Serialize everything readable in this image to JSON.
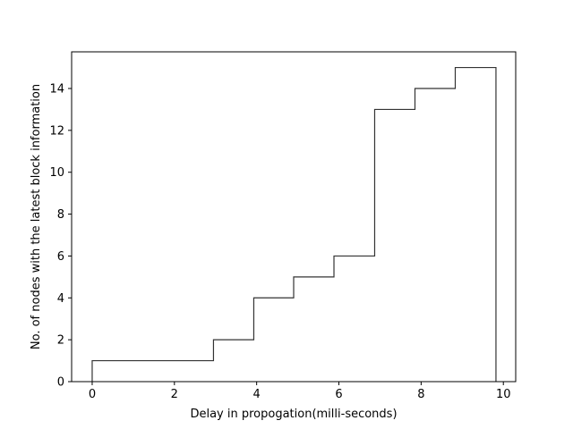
{
  "chart_data": {
    "type": "line",
    "drawstyle": "step-histogram",
    "title": "",
    "xlabel": "Delay in propogation(milli-seconds)",
    "ylabel": "No. of nodes with the latest block information",
    "xlim": [
      -0.5,
      10.3
    ],
    "ylim": [
      0,
      15.75
    ],
    "xticks": [
      0,
      2,
      4,
      6,
      8,
      10
    ],
    "yticks": [
      0,
      2,
      4,
      6,
      8,
      10,
      12,
      14
    ],
    "grid": false,
    "line_color": "#333333",
    "steps": [
      {
        "x_start": 0.0,
        "x_end": 2.95,
        "y": 1
      },
      {
        "x_start": 2.95,
        "x_end": 3.93,
        "y": 2
      },
      {
        "x_start": 3.93,
        "x_end": 4.9,
        "y": 4
      },
      {
        "x_start": 4.9,
        "x_end": 5.88,
        "y": 5
      },
      {
        "x_start": 5.88,
        "x_end": 6.87,
        "y": 6
      },
      {
        "x_start": 6.87,
        "x_end": 7.85,
        "y": 13
      },
      {
        "x_start": 7.85,
        "x_end": 8.83,
        "y": 14
      },
      {
        "x_start": 8.83,
        "x_end": 9.82,
        "y": 15
      }
    ]
  }
}
